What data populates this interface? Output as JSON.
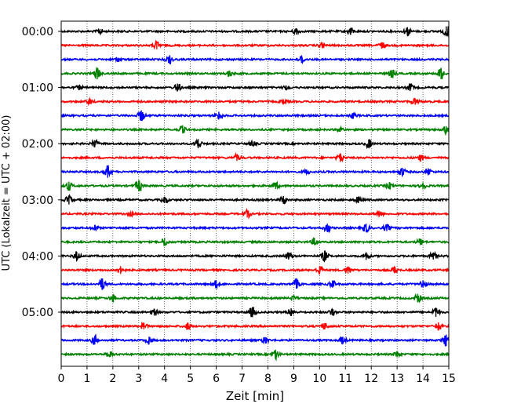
{
  "chart_data": {
    "type": "line",
    "title": "",
    "xlabel": "Zeit  [min]",
    "ylabel": "UTC (Lokalzeit = UTC + 02:00)",
    "xlim": [
      0,
      15
    ],
    "x_ticks": [
      0,
      1,
      2,
      3,
      4,
      5,
      6,
      7,
      8,
      9,
      10,
      11,
      12,
      13,
      14,
      15
    ],
    "y_tick_labels": [
      "00:00",
      "01:00",
      "02:00",
      "03:00",
      "04:00",
      "05:00"
    ],
    "y_tick_trace_index": [
      0,
      4,
      8,
      12,
      16,
      20
    ],
    "trace_interval_min": 15,
    "grid": "vertical dotted lines at each minute",
    "trace_color_cycle": [
      "#000000",
      "#ff0000",
      "#0000ff",
      "#008000"
    ],
    "traces": [
      {
        "start": "00:00",
        "events": [
          [
            1.5,
            0.35
          ],
          [
            9.1,
            0.45
          ],
          [
            11.2,
            0.5
          ],
          [
            13.4,
            0.6
          ],
          [
            14.9,
            0.7
          ]
        ]
      },
      {
        "start": "00:15",
        "events": [
          [
            3.7,
            0.55
          ],
          [
            10.1,
            0.4
          ],
          [
            12.4,
            0.45
          ]
        ]
      },
      {
        "start": "00:30",
        "events": [
          [
            4.2,
            0.6
          ],
          [
            9.3,
            0.5
          ],
          [
            2.2,
            0.25
          ]
        ]
      },
      {
        "start": "00:45",
        "events": [
          [
            1.4,
            0.8
          ],
          [
            6.5,
            0.4
          ],
          [
            12.8,
            0.5
          ],
          [
            14.7,
            0.8
          ]
        ]
      },
      {
        "start": "01:00",
        "events": [
          [
            4.5,
            0.55
          ],
          [
            13.5,
            0.5
          ],
          [
            0.7,
            0.3
          ],
          [
            8.7,
            0.3
          ]
        ]
      },
      {
        "start": "01:15",
        "events": [
          [
            1.1,
            0.35
          ],
          [
            8.6,
            0.3
          ],
          [
            13.7,
            0.45
          ]
        ]
      },
      {
        "start": "01:30",
        "events": [
          [
            3.1,
            0.75
          ],
          [
            6.1,
            0.55
          ],
          [
            11.3,
            0.35
          ]
        ]
      },
      {
        "start": "01:45",
        "events": [
          [
            4.7,
            0.45
          ],
          [
            10.8,
            0.3
          ],
          [
            14.9,
            0.5
          ]
        ]
      },
      {
        "start": "02:00",
        "events": [
          [
            1.3,
            0.5
          ],
          [
            5.3,
            0.65
          ],
          [
            11.9,
            0.6
          ],
          [
            7.4,
            0.3
          ]
        ]
      },
      {
        "start": "02:15",
        "events": [
          [
            6.8,
            0.45
          ],
          [
            10.8,
            0.6
          ],
          [
            13.9,
            0.4
          ]
        ]
      },
      {
        "start": "02:30",
        "events": [
          [
            1.8,
            0.85
          ],
          [
            13.2,
            0.55
          ],
          [
            14.2,
            0.5
          ],
          [
            9.5,
            0.3
          ]
        ]
      },
      {
        "start": "02:45",
        "events": [
          [
            0.3,
            0.6
          ],
          [
            3.0,
            0.8
          ],
          [
            8.3,
            0.45
          ],
          [
            12.7,
            0.45
          ],
          [
            14.0,
            0.5
          ]
        ]
      },
      {
        "start": "03:00",
        "events": [
          [
            0.3,
            0.65
          ],
          [
            4.0,
            0.45
          ],
          [
            8.6,
            0.55
          ],
          [
            11.5,
            0.45
          ]
        ]
      },
      {
        "start": "03:15",
        "events": [
          [
            7.2,
            0.5
          ],
          [
            12.3,
            0.45
          ],
          [
            2.7,
            0.25
          ]
        ]
      },
      {
        "start": "03:30",
        "events": [
          [
            1.3,
            0.35
          ],
          [
            10.3,
            0.6
          ],
          [
            11.8,
            0.6
          ],
          [
            12.6,
            0.45
          ]
        ]
      },
      {
        "start": "03:45",
        "events": [
          [
            4.0,
            0.55
          ],
          [
            9.8,
            0.45
          ],
          [
            13.9,
            0.45
          ]
        ]
      },
      {
        "start": "04:00",
        "events": [
          [
            0.6,
            0.6
          ],
          [
            8.8,
            0.5
          ],
          [
            10.2,
            0.7
          ],
          [
            11.8,
            0.55
          ],
          [
            14.4,
            0.5
          ]
        ]
      },
      {
        "start": "04:15",
        "events": [
          [
            2.3,
            0.55
          ],
          [
            10.0,
            0.55
          ],
          [
            11.1,
            0.5
          ],
          [
            12.9,
            0.45
          ]
        ]
      },
      {
        "start": "04:30",
        "events": [
          [
            1.6,
            0.8
          ],
          [
            6.0,
            0.5
          ],
          [
            9.1,
            0.65
          ],
          [
            10.5,
            0.5
          ],
          [
            14.0,
            0.5
          ]
        ]
      },
      {
        "start": "04:45",
        "events": [
          [
            2.0,
            0.45
          ],
          [
            13.8,
            0.6
          ],
          [
            9.0,
            0.3
          ]
        ]
      },
      {
        "start": "05:00",
        "events": [
          [
            3.6,
            0.5
          ],
          [
            7.4,
            0.7
          ],
          [
            8.9,
            0.55
          ],
          [
            14.5,
            0.65
          ],
          [
            10.5,
            0.45
          ]
        ]
      },
      {
        "start": "05:15",
        "events": [
          [
            3.2,
            0.45
          ],
          [
            4.9,
            0.45
          ],
          [
            10.2,
            0.45
          ],
          [
            14.6,
            0.55
          ]
        ]
      },
      {
        "start": "05:30",
        "events": [
          [
            1.3,
            0.6
          ],
          [
            3.4,
            0.5
          ],
          [
            7.9,
            0.45
          ],
          [
            10.9,
            0.5
          ],
          [
            14.9,
            0.8
          ]
        ]
      },
      {
        "start": "05:45",
        "events": [
          [
            1.9,
            0.4
          ],
          [
            8.3,
            0.65
          ],
          [
            13.0,
            0.4
          ]
        ]
      }
    ]
  }
}
